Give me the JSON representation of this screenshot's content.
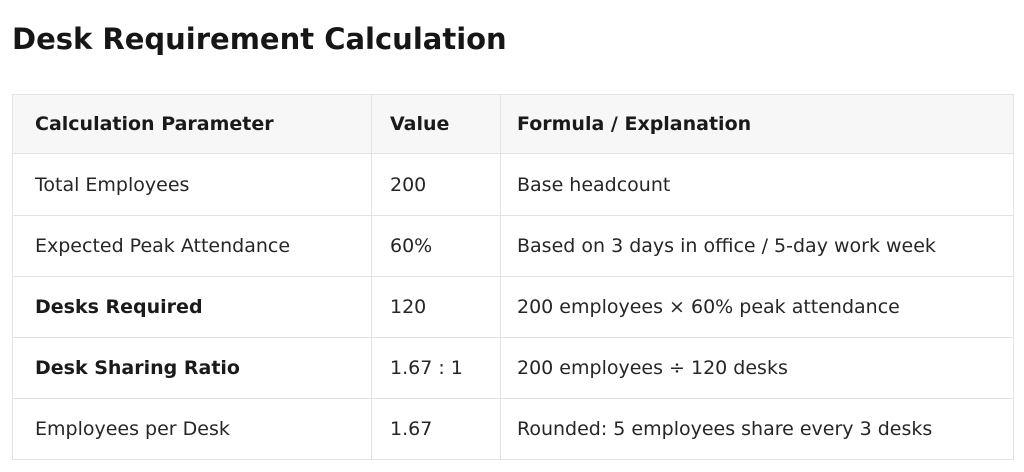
{
  "title": "Desk Requirement Calculation",
  "table": {
    "headers": [
      "Calculation Parameter",
      "Value",
      "Formula / Explanation"
    ],
    "rows": [
      {
        "parameter": "Total Employees",
        "value": "200",
        "explanation": "Base headcount",
        "bold": false
      },
      {
        "parameter": "Expected Peak Attendance",
        "value": "60%",
        "explanation": "Based on 3 days in office / 5-day work week",
        "bold": false
      },
      {
        "parameter": "Desks Required",
        "value": "120",
        "explanation": "200 employees × 60% peak attendance",
        "bold": true
      },
      {
        "parameter": "Desk Sharing Ratio",
        "value": "1.67 : 1",
        "explanation": "200 employees ÷ 120 desks",
        "bold": true
      },
      {
        "parameter": "Employees per Desk",
        "value": "1.67",
        "explanation": "Rounded: 5 employees share every 3 desks",
        "bold": false
      }
    ]
  }
}
